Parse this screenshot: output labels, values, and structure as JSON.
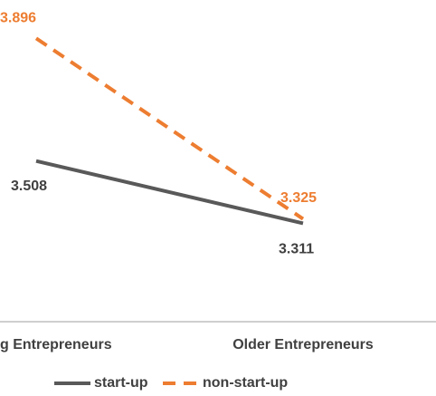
{
  "chart_data": {
    "type": "line",
    "categories": [
      "g Entrepreneurs",
      "Older Entrepreneurs"
    ],
    "series": [
      {
        "name": "start-up",
        "color": "#595959",
        "dash": false,
        "values": [
          3.508,
          3.311
        ]
      },
      {
        "name": "non-start-up",
        "color": "#ed7d31",
        "dash": true,
        "values": [
          3.896,
          3.325
        ]
      }
    ],
    "ylim": [
      3,
      4
    ]
  }
}
